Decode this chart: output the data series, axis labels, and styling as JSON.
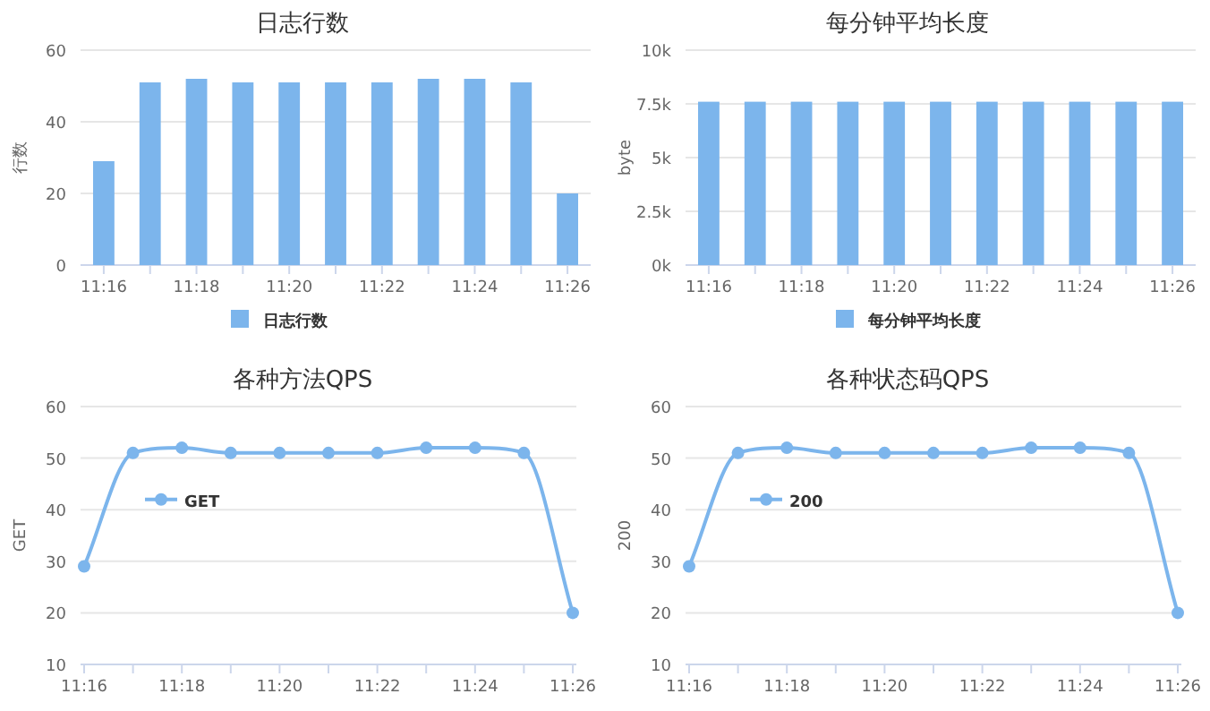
{
  "chart_data": [
    {
      "type": "bar",
      "title": "日志行数",
      "ylabel": "行数",
      "categories": [
        "11:16",
        null,
        "11:18",
        null,
        "11:20",
        null,
        "11:22",
        null,
        "11:24",
        null,
        "11:26"
      ],
      "series": [
        {
          "name": "日志行数",
          "color": "#7cb5ec",
          "values": [
            29,
            51,
            52,
            51,
            51,
            51,
            51,
            52,
            52,
            51,
            20
          ]
        }
      ],
      "ylim": [
        0,
        60
      ],
      "yticks": [
        0,
        20,
        40,
        60
      ],
      "grid": "y",
      "legend": "bottom"
    },
    {
      "type": "bar",
      "title": "每分钟平均长度",
      "ylabel": "byte",
      "categories": [
        "11:16",
        null,
        "11:18",
        null,
        "11:20",
        null,
        "11:22",
        null,
        "11:24",
        null,
        "11:26"
      ],
      "series": [
        {
          "name": "每分钟平均长度",
          "color": "#7cb5ec",
          "values": [
            7600,
            7600,
            7600,
            7600,
            7600,
            7600,
            7600,
            7600,
            7600,
            7600,
            7600
          ]
        }
      ],
      "ylim": [
        0,
        10000
      ],
      "yticks": [
        {
          "value": 0,
          "label": "0k"
        },
        {
          "value": 2500,
          "label": "2.5k"
        },
        {
          "value": 5000,
          "label": "5k"
        },
        {
          "value": 7500,
          "label": "7.5k"
        },
        {
          "value": 10000,
          "label": "10k"
        }
      ],
      "grid": "y",
      "legend": "bottom"
    },
    {
      "type": "line",
      "title": "各种方法QPS",
      "ylabel": "GET",
      "categories": [
        "11:16",
        null,
        "11:18",
        null,
        "11:20",
        null,
        "11:22",
        null,
        "11:24",
        null,
        "11:26"
      ],
      "series": [
        {
          "name": "GET",
          "color": "#7cb5ec",
          "values": [
            29,
            51,
            52,
            51,
            51,
            51,
            51,
            52,
            52,
            51,
            20
          ]
        }
      ],
      "ylim": [
        10,
        60
      ],
      "yticks": [
        10,
        20,
        30,
        40,
        50,
        60
      ],
      "grid": "y",
      "legend": "left",
      "marker": "circle"
    },
    {
      "type": "line",
      "title": "各种状态码QPS",
      "ylabel": "200",
      "categories": [
        "11:16",
        null,
        "11:18",
        null,
        "11:20",
        null,
        "11:22",
        null,
        "11:24",
        null,
        "11:26"
      ],
      "series": [
        {
          "name": "200",
          "color": "#7cb5ec",
          "values": [
            29,
            51,
            52,
            51,
            51,
            51,
            51,
            52,
            52,
            51,
            20
          ]
        }
      ],
      "ylim": [
        10,
        60
      ],
      "yticks": [
        10,
        20,
        30,
        40,
        50,
        60
      ],
      "grid": "y",
      "legend": "left",
      "marker": "circle"
    }
  ]
}
